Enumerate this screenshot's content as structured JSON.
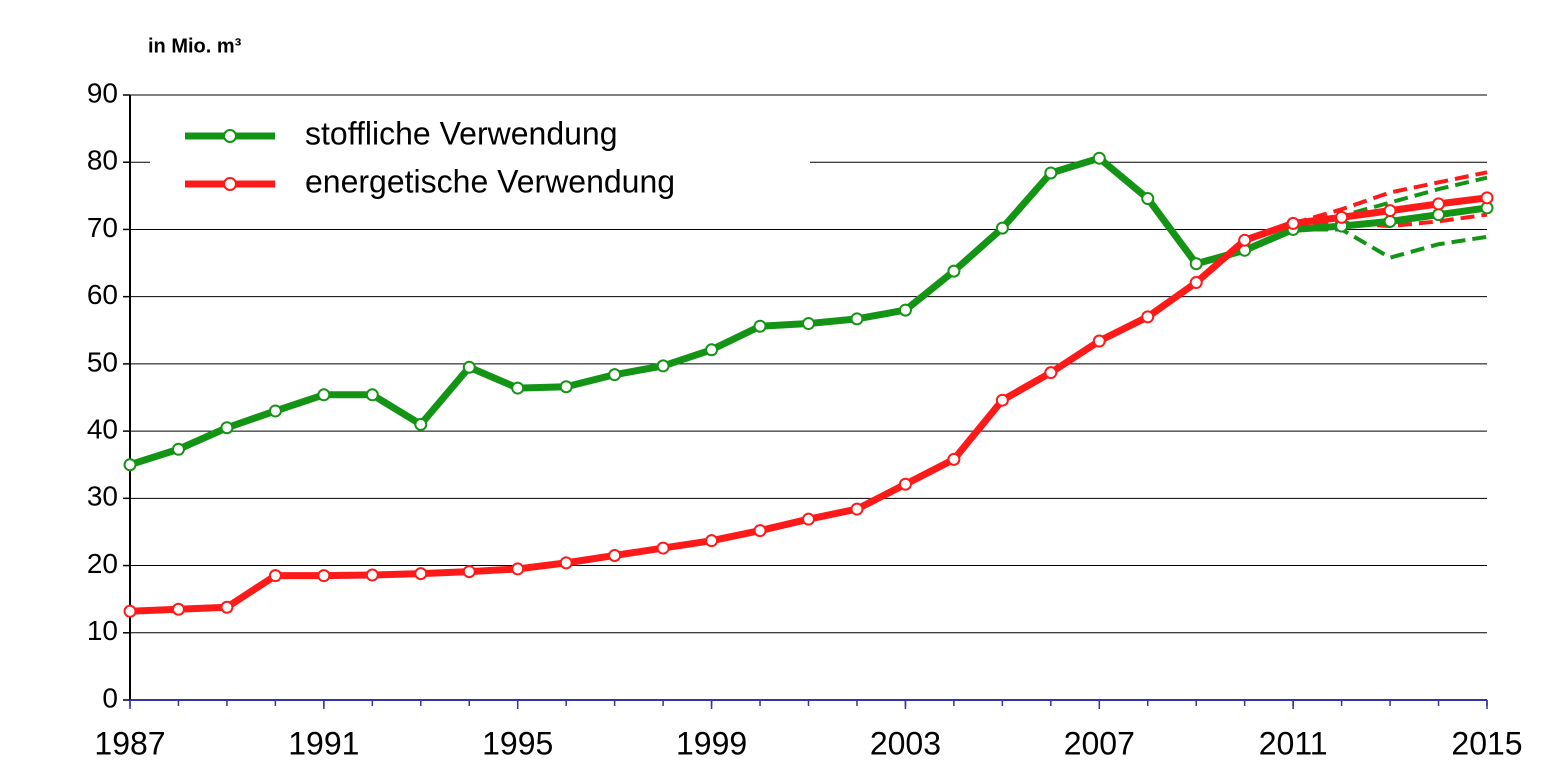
{
  "chart_data": {
    "type": "line",
    "y_label": "in Mio. m³",
    "x": [
      1987,
      1988,
      1989,
      1990,
      1991,
      1992,
      1993,
      1994,
      1995,
      1996,
      1997,
      1998,
      1999,
      2000,
      2001,
      2002,
      2003,
      2004,
      2005,
      2006,
      2007,
      2008,
      2009,
      2010,
      2011,
      2012,
      2013,
      2014,
      2015
    ],
    "series": [
      {
        "name": "stoffliche Verwendung",
        "color": "#149414",
        "values": [
          35,
          37.3,
          40.5,
          43,
          45.4,
          45.4,
          41,
          49.5,
          46.4,
          46.6,
          48.4,
          49.7,
          52.1,
          55.6,
          56,
          56.7,
          58,
          63.8,
          70.2,
          78.4,
          80.6,
          74.6,
          64.9,
          66.9,
          70,
          70.5,
          71.2,
          72.2,
          73.2
        ]
      },
      {
        "name": "energetische Verwendung",
        "color": "#ff1a1a",
        "values": [
          13.2,
          13.5,
          13.8,
          18.5,
          18.5,
          18.6,
          18.8,
          19.1,
          19.5,
          20.4,
          21.5,
          22.6,
          23.7,
          25.2,
          26.9,
          28.4,
          32.1,
          35.8,
          44.6,
          48.7,
          53.4,
          57,
          62.1,
          68.4,
          70.9,
          71.8,
          72.8,
          73.8,
          74.7
        ]
      }
    ],
    "scenarios": [
      {
        "color": "#149414",
        "values": [
          null,
          null,
          null,
          null,
          null,
          null,
          null,
          null,
          null,
          null,
          null,
          null,
          null,
          null,
          null,
          null,
          null,
          null,
          null,
          null,
          null,
          null,
          null,
          null,
          70,
          72,
          74,
          76,
          77.7
        ]
      },
      {
        "color": "#149414",
        "values": [
          null,
          null,
          null,
          null,
          null,
          null,
          null,
          null,
          null,
          null,
          null,
          null,
          null,
          null,
          null,
          null,
          null,
          null,
          null,
          null,
          null,
          null,
          null,
          null,
          70,
          70,
          65.8,
          67.8,
          68.9
        ]
      },
      {
        "color": "#ff1a1a",
        "values": [
          null,
          null,
          null,
          null,
          null,
          null,
          null,
          null,
          null,
          null,
          null,
          null,
          null,
          null,
          null,
          null,
          null,
          null,
          null,
          null,
          null,
          null,
          null,
          null,
          70.9,
          73,
          75.5,
          77,
          78.5
        ]
      },
      {
        "color": "#ff1a1a",
        "values": [
          null,
          null,
          null,
          null,
          null,
          null,
          null,
          null,
          null,
          null,
          null,
          null,
          null,
          null,
          null,
          null,
          null,
          null,
          null,
          null,
          null,
          null,
          null,
          null,
          70.9,
          71,
          70.5,
          71.2,
          72.2
        ]
      }
    ],
    "xlim": [
      1987,
      2015
    ],
    "xticks": [
      1987,
      1991,
      1995,
      1999,
      2003,
      2007,
      2011,
      2015
    ],
    "ylim": [
      0,
      90
    ],
    "yticks": [
      0,
      10,
      20,
      30,
      40,
      50,
      60,
      70,
      80,
      90
    ],
    "grid": true,
    "legend": "top-left"
  }
}
